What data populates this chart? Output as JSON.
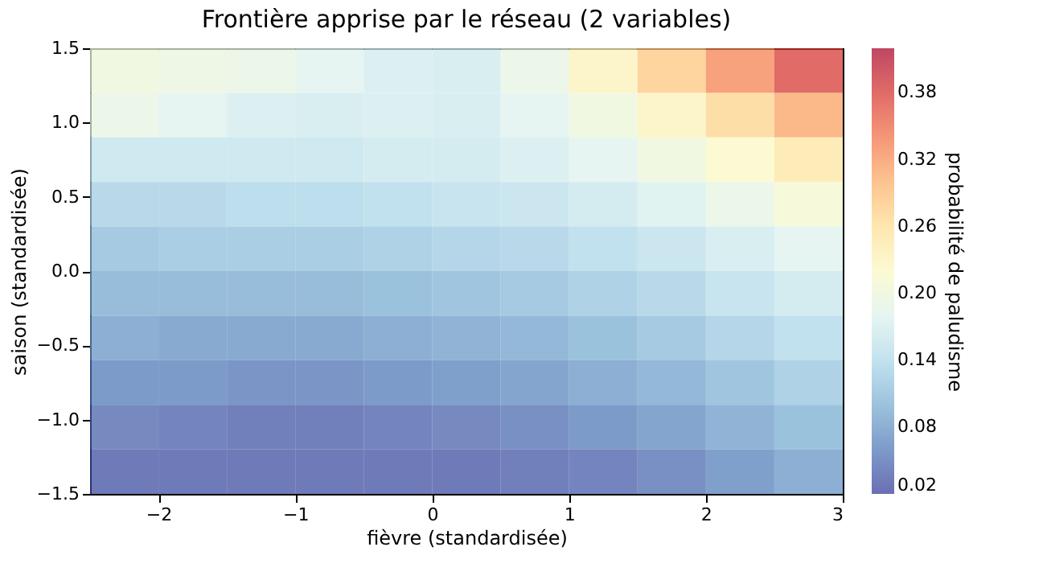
{
  "chart_data": {
    "type": "heatmap",
    "title": "Frontière apprise par le réseau (2 variables)",
    "xlabel": "fièvre (standardisée)",
    "ylabel": "saison (standardisée)",
    "clabel": "probabilité de paludisme",
    "x": [
      -2.25,
      -1.75,
      -1.25,
      -0.75,
      -0.25,
      0.25,
      0.75,
      1.25,
      1.75,
      2.25,
      2.75
    ],
    "y": [
      1.35,
      1.05,
      0.75,
      0.45,
      0.15,
      -0.15,
      -0.45,
      -0.75,
      -1.05,
      -1.35
    ],
    "cells": [
      [
        0.2,
        0.195,
        0.19,
        0.18,
        0.17,
        0.165,
        0.19,
        0.23,
        0.28,
        0.33,
        0.38
      ],
      [
        0.19,
        0.18,
        0.17,
        0.165,
        0.17,
        0.165,
        0.18,
        0.2,
        0.23,
        0.27,
        0.31
      ],
      [
        0.155,
        0.155,
        0.155,
        0.155,
        0.16,
        0.16,
        0.17,
        0.18,
        0.2,
        0.22,
        0.25
      ],
      [
        0.13,
        0.13,
        0.135,
        0.135,
        0.14,
        0.145,
        0.15,
        0.16,
        0.175,
        0.19,
        0.21
      ],
      [
        0.11,
        0.115,
        0.115,
        0.115,
        0.12,
        0.125,
        0.13,
        0.14,
        0.15,
        0.165,
        0.18
      ],
      [
        0.095,
        0.095,
        0.095,
        0.095,
        0.1,
        0.105,
        0.11,
        0.12,
        0.13,
        0.145,
        0.16
      ],
      [
        0.08,
        0.075,
        0.075,
        0.075,
        0.08,
        0.085,
        0.09,
        0.1,
        0.11,
        0.125,
        0.14
      ],
      [
        0.06,
        0.06,
        0.055,
        0.055,
        0.06,
        0.065,
        0.07,
        0.08,
        0.09,
        0.105,
        0.12
      ],
      [
        0.045,
        0.04,
        0.035,
        0.035,
        0.04,
        0.045,
        0.05,
        0.06,
        0.07,
        0.085,
        0.1
      ],
      [
        0.03,
        0.03,
        0.03,
        0.03,
        0.03,
        0.03,
        0.035,
        0.04,
        0.05,
        0.065,
        0.08
      ]
    ],
    "xlim": [
      -2.5,
      3
    ],
    "ylim": [
      -1.5,
      1.5
    ],
    "xticks": [
      {
        "value": -2,
        "label": "−2"
      },
      {
        "value": -1,
        "label": "−1"
      },
      0,
      1,
      2,
      3
    ],
    "yticks": [
      {
        "value": -1.5,
        "label": "−1.5"
      },
      {
        "value": -1.0,
        "label": "−1.0"
      },
      {
        "value": -0.5,
        "label": "−0.5"
      },
      {
        "value": 0,
        "label": "0.0"
      },
      0.5,
      {
        "value": 1.0,
        "label": "1.0"
      },
      1.5
    ],
    "clim": [
      0.02,
      0.42
    ],
    "cticks": [
      0.02,
      0.08,
      0.14,
      {
        "value": 0.2,
        "label": "0.20"
      },
      0.26,
      0.32,
      0.38
    ],
    "grid": false
  }
}
